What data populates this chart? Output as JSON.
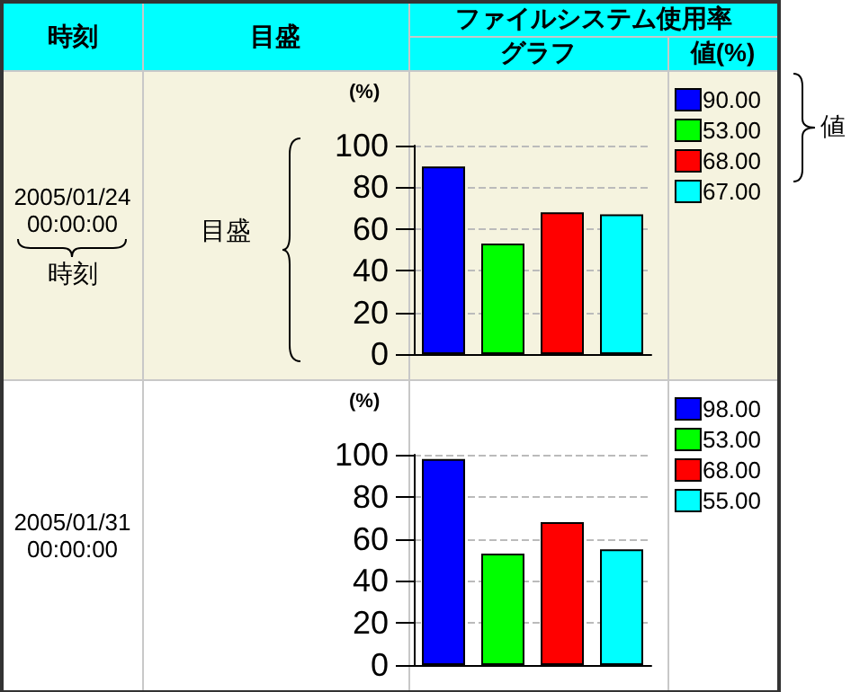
{
  "chart_data": [
    {
      "type": "bar",
      "categories": [
        null,
        null,
        null,
        null
      ],
      "ylabel": "(%)",
      "ylim": [
        0,
        100
      ],
      "yticks": [
        0,
        20,
        40,
        60,
        80,
        100
      ],
      "grid": "y",
      "legend": "top right",
      "series": [
        {
          "name": "90.00",
          "color": "#0000ff",
          "values": [
            90,
            null,
            null,
            null
          ]
        },
        {
          "name": "53.00",
          "color": "#00ff00",
          "values": [
            null,
            53,
            null,
            null
          ]
        },
        {
          "name": "68.00",
          "color": "#ff0000",
          "values": [
            null,
            null,
            68,
            null
          ]
        },
        {
          "name": "67.00",
          "color": "#00ffff",
          "values": [
            null,
            null,
            null,
            67
          ]
        }
      ],
      "annotations": [
        "2005/01/24 00:00:00",
        "時刻",
        "目盛",
        "値",
        "時刻",
        "目盛",
        "ファイルシステム使用率",
        "グラフ",
        "値(%)"
      ]
    },
    {
      "type": "bar",
      "categories": [
        null,
        null,
        null,
        null
      ],
      "ylabel": "(%)",
      "ylim": [
        0,
        100
      ],
      "yticks": [
        0,
        20,
        40,
        60,
        80,
        100
      ],
      "grid": "y",
      "legend": "top right",
      "series": [
        {
          "name": "98.00",
          "color": "#0000ff",
          "values": [
            98,
            null,
            null,
            null
          ]
        },
        {
          "name": "53.00",
          "color": "#00ff00",
          "values": [
            null,
            53,
            null,
            null
          ]
        },
        {
          "name": "68.00",
          "color": "#ff0000",
          "values": [
            null,
            null,
            68,
            null
          ]
        },
        {
          "name": "55.00",
          "color": "#00ffff",
          "values": [
            null,
            null,
            null,
            55
          ]
        }
      ],
      "annotations": [
        "2005/01/31 00:00:00"
      ]
    }
  ]
}
